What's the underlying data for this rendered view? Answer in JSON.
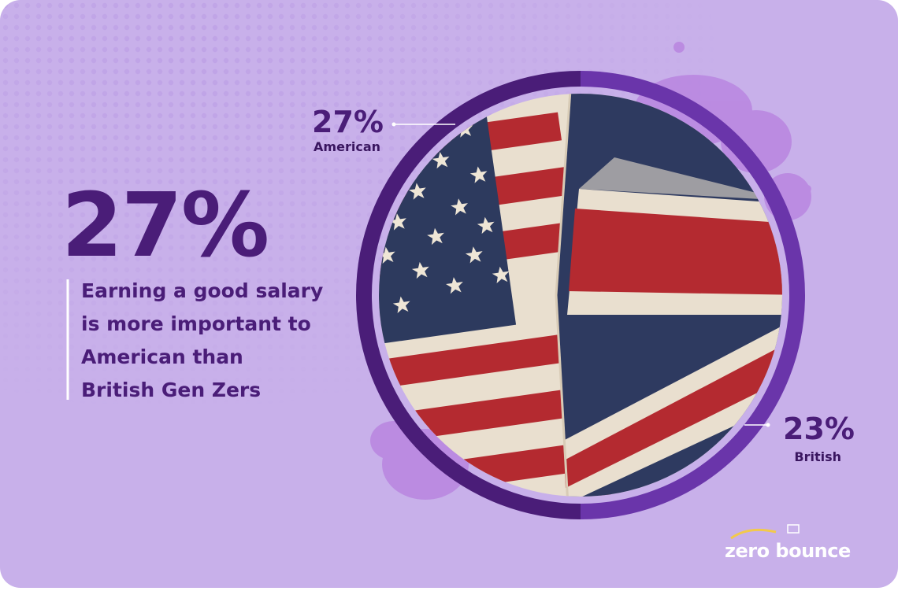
{
  "headline": {
    "figure": "27%",
    "lines": [
      "Earning a good salary",
      "is more important to",
      "American than",
      "British Gen Zers"
    ]
  },
  "callouts": [
    {
      "figure": "27%",
      "label": "American"
    },
    {
      "figure": "23%",
      "label": "British"
    }
  ],
  "logo": "zero bounce"
}
